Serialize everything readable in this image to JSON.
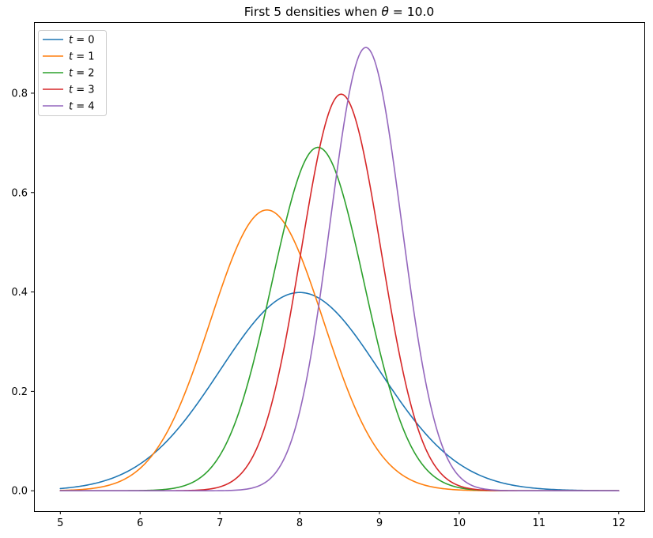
{
  "chart_data": {
    "type": "line",
    "title": "First 5 densities when θ = 10.0",
    "title_parts": {
      "prefix": "First 5 densities when ",
      "symbol": "θ",
      "suffix": " = 10.0"
    },
    "xlabel": "",
    "ylabel": "",
    "xlim": [
      4.67,
      12.32
    ],
    "ylim": [
      -0.041,
      0.943
    ],
    "xticks": [
      5,
      6,
      7,
      8,
      9,
      10,
      11,
      12
    ],
    "yticks": [
      "0.0",
      "0.2",
      "0.4",
      "0.6",
      "0.8"
    ],
    "grid": false,
    "legend_position": "upper left",
    "x_sample_range": [
      5,
      12
    ],
    "curve_model": "gaussian: y = peak * exp(-(x-mean)^2/(2*std^2))",
    "series": [
      {
        "name": "t0",
        "label": "t = 0",
        "color": "#1f77b4",
        "mean": 8.0,
        "std": 1.0,
        "peak": 0.399
      },
      {
        "name": "t1",
        "label": "t = 1",
        "color": "#ff7f0e",
        "mean": 7.59,
        "std": 0.707,
        "peak": 0.565
      },
      {
        "name": "t2",
        "label": "t = 2",
        "color": "#2ca02c",
        "mean": 8.23,
        "std": 0.577,
        "peak": 0.691
      },
      {
        "name": "t3",
        "label": "t = 3",
        "color": "#d62728",
        "mean": 8.52,
        "std": 0.5,
        "peak": 0.798
      },
      {
        "name": "t4",
        "label": "t = 4",
        "color": "#9467bd",
        "mean": 8.83,
        "std": 0.447,
        "peak": 0.892
      }
    ]
  }
}
